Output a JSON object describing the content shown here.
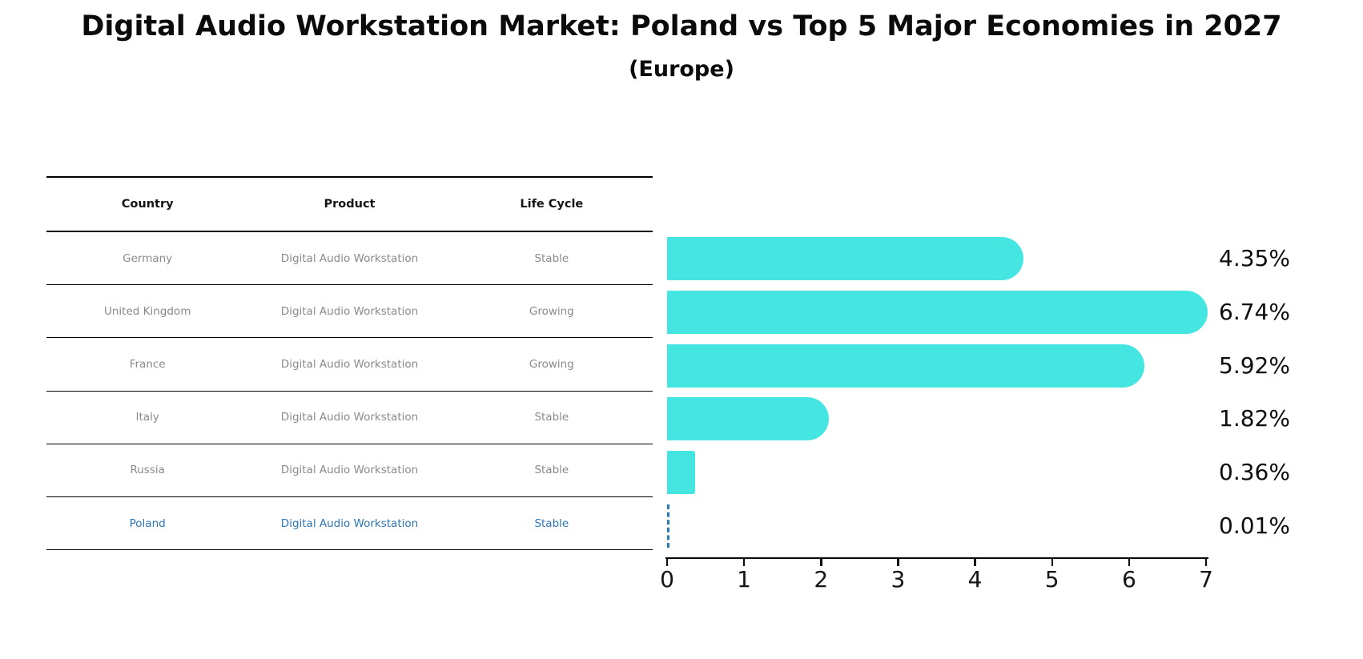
{
  "title": "Digital Audio Workstation Market: Poland vs Top 5 Major Economies in 2027",
  "subtitle": "(Europe)",
  "table": {
    "headers": [
      "Country",
      "Product",
      "Life Cycle"
    ],
    "rows": [
      {
        "country": "Germany",
        "product": "Digital Audio Workstation",
        "life_cycle": "Stable",
        "highlighted": false
      },
      {
        "country": "United Kingdom",
        "product": "Digital Audio Workstation",
        "life_cycle": "Growing",
        "highlighted": false
      },
      {
        "country": "France",
        "product": "Digital Audio Workstation",
        "life_cycle": "Growing",
        "highlighted": false
      },
      {
        "country": "Italy",
        "product": "Digital Audio Workstation",
        "life_cycle": "Stable",
        "highlighted": false
      },
      {
        "country": "Russia",
        "product": "Digital Audio Workstation",
        "life_cycle": "Stable",
        "highlighted": false
      },
      {
        "country": "Poland",
        "product": "Digital Audio Workstation",
        "life_cycle": "Stable",
        "highlighted": true
      }
    ]
  },
  "chart_data": {
    "type": "bar",
    "orientation": "horizontal",
    "categories": [
      "Germany",
      "United Kingdom",
      "France",
      "Italy",
      "Russia",
      "Poland"
    ],
    "values": [
      4.35,
      6.74,
      5.92,
      1.82,
      0.36,
      0.01
    ],
    "value_labels": [
      "4.35%",
      "6.74%",
      "5.92%",
      "1.82%",
      "0.36%",
      "0.01%"
    ],
    "xlabel": "",
    "ylabel": "",
    "xlim": [
      0,
      7
    ],
    "x_ticks": [
      "0",
      "1",
      "2",
      "3",
      "4",
      "5",
      "6",
      "7"
    ],
    "grid": false,
    "legend": "none",
    "bar_color": "#45E6E2",
    "highlight_color": "#2979B9",
    "highlight_index": 5,
    "highlight_style": "dashed-outline"
  }
}
